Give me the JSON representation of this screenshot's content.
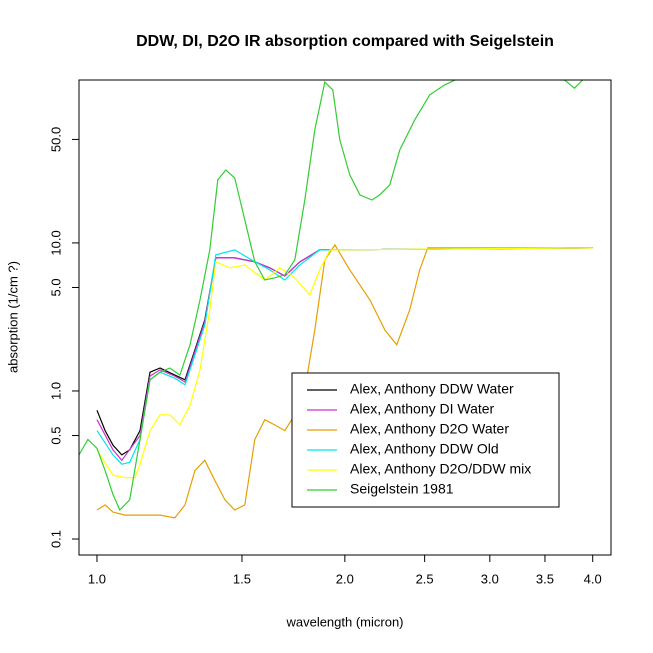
{
  "chart_data": {
    "type": "line",
    "title": "DDW, DI, D2O IR absorption compared with Seigelstein",
    "x_label": "wavelength (micron)",
    "y_label": "absorption (1/cm ?)",
    "xlog": true,
    "ylog": true,
    "xlim": [
      0.951,
      4.21
    ],
    "ylim": [
      0.078,
      126
    ],
    "xticks": [
      {
        "value": 1,
        "label": "1.0"
      },
      1.5,
      {
        "value": 2,
        "label": "2.0"
      },
      2.5,
      {
        "value": 3,
        "label": "3.0"
      },
      3.5,
      {
        "value": 4,
        "label": "4.0"
      }
    ],
    "yticks": [
      0.1,
      0.5,
      {
        "value": 1,
        "label": "1.0"
      },
      {
        "value": 5,
        "label": "5.0"
      },
      {
        "value": 10,
        "label": "10.0"
      },
      {
        "value": 50,
        "label": "50.0"
      }
    ],
    "legend": "right",
    "series": [
      {
        "name": "Alex, Anthony DDW Water",
        "color": "#000000",
        "x": [
          1.0,
          1.023,
          1.046,
          1.072,
          1.096,
          1.128,
          1.16,
          1.193,
          1.243,
          1.279,
          1.315,
          1.352,
          1.394,
          1.47,
          1.555,
          1.622,
          1.691,
          1.764,
          1.864,
          4.0
        ],
        "values": [
          0.74,
          0.54,
          0.43,
          0.37,
          0.4,
          0.54,
          1.34,
          1.43,
          1.28,
          1.19,
          1.89,
          3.02,
          7.92,
          7.92,
          7.45,
          6.78,
          5.98,
          7.45,
          8.97,
          9.25
        ]
      },
      {
        "name": "Alex, Anthony DI Water",
        "color": "#cc33cc",
        "x": [
          1.0,
          1.046,
          1.072,
          1.128,
          1.16,
          1.193,
          1.243,
          1.279,
          1.315,
          1.352,
          1.394,
          1.47,
          1.555,
          1.622,
          1.691,
          1.764,
          1.864,
          4.0
        ],
        "values": [
          0.64,
          0.4,
          0.34,
          0.5,
          1.26,
          1.39,
          1.26,
          1.15,
          1.84,
          2.93,
          7.92,
          7.92,
          7.45,
          6.78,
          5.98,
          7.45,
          8.97,
          9.25
        ]
      },
      {
        "name": "Alex, Anthony D2O Water",
        "color": "#e69f00",
        "x": [
          1.0,
          1.023,
          1.046,
          1.081,
          1.128,
          1.193,
          1.243,
          1.279,
          1.315,
          1.352,
          1.39,
          1.43,
          1.47,
          1.512,
          1.555,
          1.599,
          1.644,
          1.691,
          1.739,
          1.788,
          1.839,
          1.891,
          1.945,
          2.028,
          2.145,
          2.237,
          2.312,
          2.398,
          2.466,
          2.522,
          4.0
        ],
        "values": [
          0.157,
          0.17,
          0.152,
          0.145,
          0.145,
          0.145,
          0.139,
          0.17,
          0.29,
          0.34,
          0.25,
          0.184,
          0.157,
          0.17,
          0.47,
          0.64,
          0.59,
          0.54,
          0.69,
          1.02,
          2.58,
          7.67,
          9.69,
          6.57,
          4.12,
          2.58,
          2.05,
          3.53,
          6.57,
          9.25,
          9.25
        ]
      },
      {
        "name": "Alex, Anthony DDW Old",
        "color": "#00e5ee",
        "x": [
          1.0,
          1.046,
          1.072,
          1.096,
          1.128,
          1.16,
          1.193,
          1.243,
          1.279,
          1.315,
          1.352,
          1.394,
          1.47,
          1.555,
          1.622,
          1.691,
          1.764,
          1.864,
          4.0
        ],
        "values": [
          0.54,
          0.37,
          0.32,
          0.33,
          0.47,
          1.19,
          1.34,
          1.22,
          1.1,
          1.75,
          2.79,
          8.3,
          8.97,
          7.45,
          6.57,
          5.62,
          7.1,
          8.97,
          9.25
        ]
      },
      {
        "name": "Alex, Anthony D2O/DDW mix",
        "color": "#ffff00",
        "x": [
          1.0,
          1.046,
          1.081,
          1.112,
          1.128,
          1.16,
          1.193,
          1.226,
          1.261,
          1.297,
          1.334,
          1.371,
          1.394,
          1.45,
          1.512,
          1.599,
          1.668,
          1.739,
          1.813,
          1.864,
          1.918,
          4.0
        ],
        "values": [
          0.4,
          0.27,
          0.26,
          0.26,
          0.32,
          0.54,
          0.69,
          0.69,
          0.59,
          0.8,
          1.39,
          3.53,
          7.45,
          6.78,
          7.1,
          5.62,
          6.78,
          5.81,
          4.45,
          6.57,
          8.97,
          9.25
        ]
      },
      {
        "name": "Seigelstein 1981",
        "color": "#33cc33",
        "x": [
          0.951,
          0.975,
          1.0,
          1.023,
          1.046,
          1.066,
          1.096,
          1.128,
          1.16,
          1.193,
          1.226,
          1.261,
          1.297,
          1.334,
          1.371,
          1.402,
          1.434,
          1.47,
          1.512,
          1.555,
          1.599,
          1.644,
          1.691,
          1.739,
          1.788,
          1.839,
          1.891,
          1.934,
          1.972,
          2.028,
          2.086,
          2.157,
          2.205,
          2.268,
          2.332,
          2.432,
          2.536,
          2.645,
          2.757,
          3.698,
          3.8,
          3.91
        ],
        "values": [
          0.37,
          0.47,
          0.41,
          0.29,
          0.2,
          0.157,
          0.184,
          0.47,
          1.19,
          1.34,
          1.43,
          1.28,
          2.05,
          4.12,
          8.97,
          26.7,
          31.1,
          27.5,
          14.3,
          7.45,
          5.62,
          5.81,
          6.08,
          7.67,
          19.5,
          58,
          122,
          108,
          49.7,
          28.8,
          21.1,
          19.5,
          21.1,
          24.7,
          42.5,
          67.8,
          100,
          117,
          130,
          126,
          111,
          130
        ]
      }
    ]
  }
}
